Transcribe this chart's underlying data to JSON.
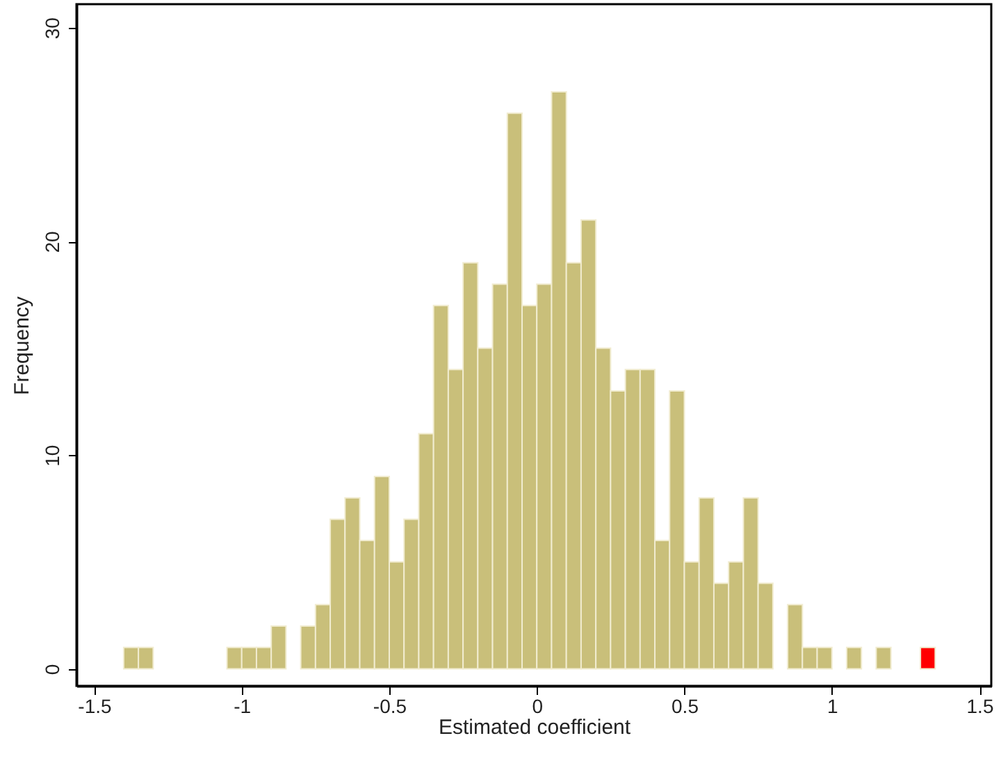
{
  "chart_data": {
    "type": "histogram",
    "xlabel": "Estimated coefficient",
    "ylabel": "Frequency",
    "bins": [
      -1.4,
      -1.35,
      -1.3,
      -1.25,
      -1.2,
      -1.15,
      -1.1,
      -1.05,
      -1.0,
      -0.95,
      -0.9,
      -0.85,
      -0.8,
      -0.75,
      -0.7,
      -0.65,
      -0.6,
      -0.55,
      -0.5,
      -0.45,
      -0.4,
      -0.35,
      -0.3,
      -0.25,
      -0.2,
      -0.15,
      -0.1,
      -0.05,
      0,
      0.05,
      0.1,
      0.15,
      0.2,
      0.25,
      0.3,
      0.35,
      0.4,
      0.45,
      0.5,
      0.55,
      0.6,
      0.65,
      0.7,
      0.75,
      0.8,
      0.85,
      0.9,
      0.95,
      1.0,
      1.05,
      1.1,
      1.15,
      1.2,
      1.25,
      1.3,
      1.35
    ],
    "series": [
      {
        "color": "#c9bf7a",
        "values": [
          1,
          1,
          0,
          0,
          0,
          0,
          0,
          1,
          1,
          1,
          2,
          0,
          2,
          3,
          7,
          8,
          6,
          9,
          5,
          7,
          11,
          17,
          14,
          19,
          15,
          18,
          26,
          17,
          18,
          27,
          19,
          21,
          15,
          13,
          14,
          14,
          6,
          13,
          5,
          8,
          4,
          5,
          8,
          4,
          0,
          3,
          1,
          1,
          0,
          1,
          0,
          1,
          0,
          0,
          null
        ]
      },
      {
        "color": "#ff0000",
        "values": [
          null,
          null,
          null,
          null,
          null,
          null,
          null,
          null,
          null,
          null,
          null,
          null,
          null,
          null,
          null,
          null,
          null,
          null,
          null,
          null,
          null,
          null,
          null,
          null,
          null,
          null,
          null,
          null,
          null,
          null,
          null,
          null,
          null,
          null,
          null,
          null,
          null,
          null,
          null,
          null,
          null,
          null,
          null,
          null,
          null,
          null,
          null,
          null,
          null,
          null,
          null,
          null,
          null,
          null,
          1
        ]
      }
    ],
    "xlim": [
      -1.56,
      1.54
    ],
    "ylim": [
      -0.8,
      31.1
    ],
    "xticks": [
      -1.5,
      -1,
      -0.5,
      0,
      0.5,
      1,
      1.5
    ],
    "yticks": [
      0,
      10,
      20,
      30
    ],
    "grid": false
  }
}
